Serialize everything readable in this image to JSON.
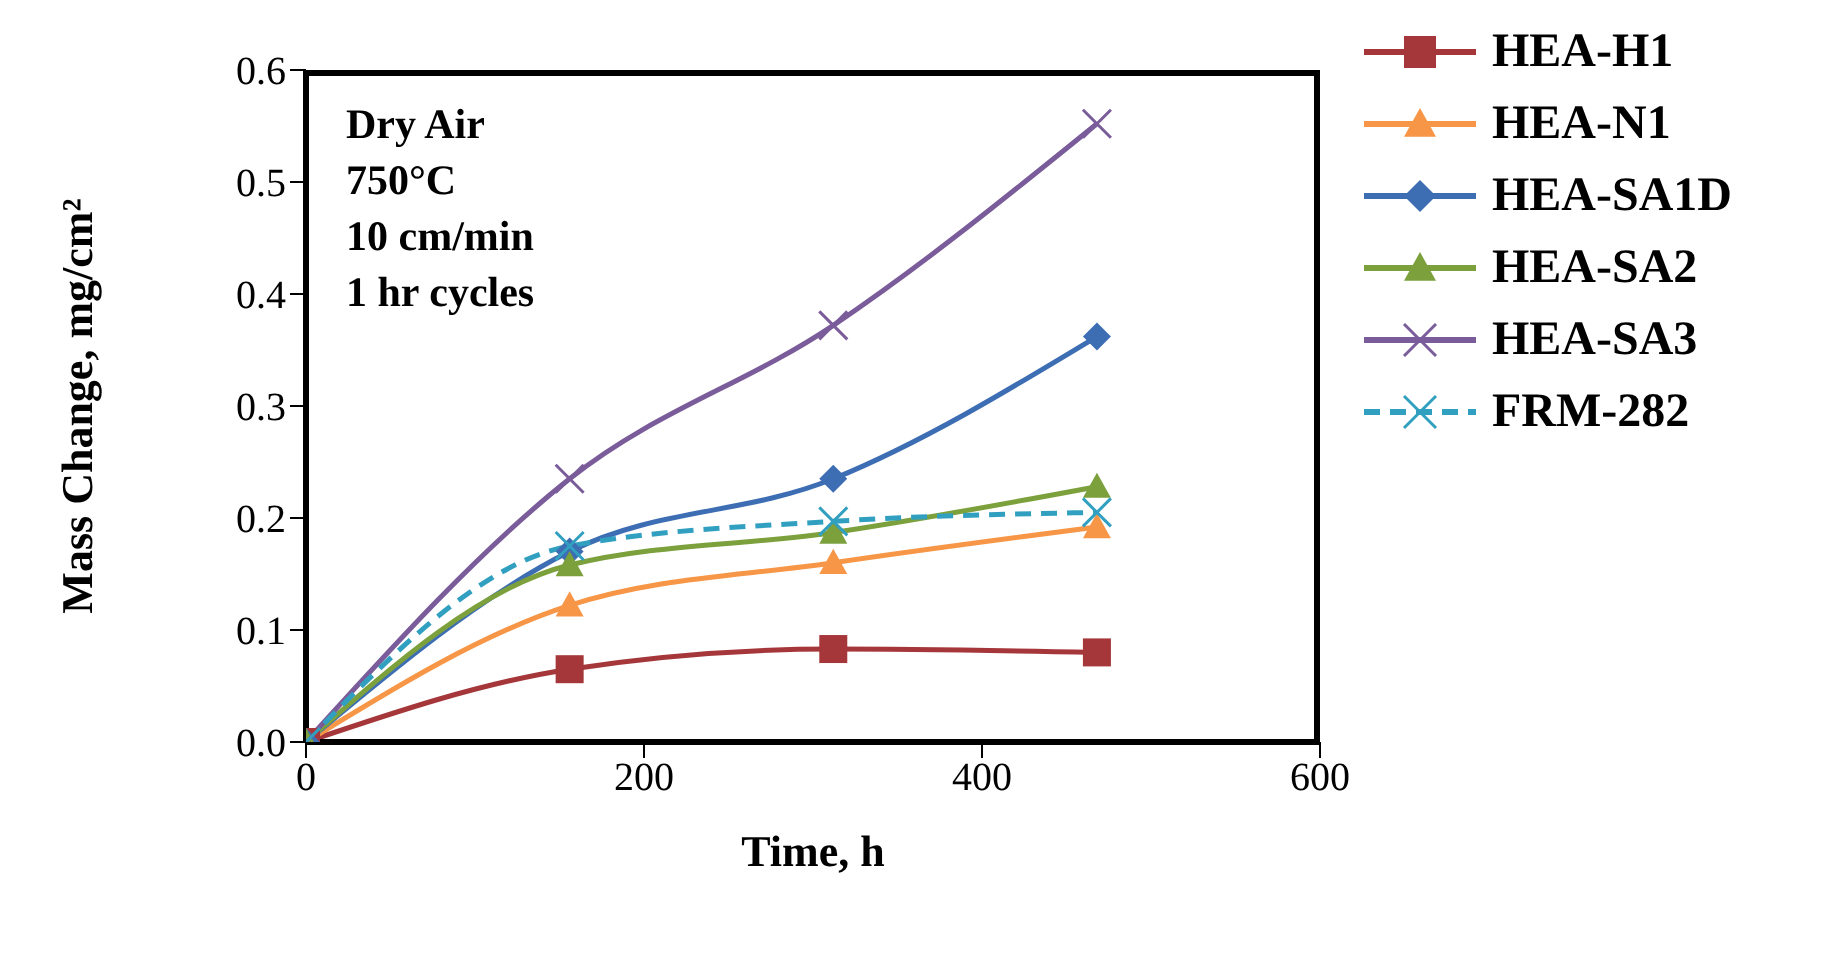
{
  "chart_data": {
    "type": "line",
    "xlabel": "Time, h",
    "ylabel": "Mass Change, mg/cm²",
    "annotations": [
      "Dry Air",
      "750°C",
      "10 cm/min",
      "1 hr cycles"
    ],
    "x": [
      0,
      156,
      312,
      468
    ],
    "series": [
      {
        "name": "HEA-H1",
        "color": "#a5373a",
        "marker": "square",
        "values": [
          0,
          0.065,
          0.083,
          0.08
        ]
      },
      {
        "name": "HEA-N1",
        "color": "#f79646",
        "marker": "triangle",
        "values": [
          0,
          0.122,
          0.16,
          0.192
        ]
      },
      {
        "name": "HEA-SA1D",
        "color": "#3d6eb4",
        "marker": "diamond",
        "values": [
          0,
          0.17,
          0.235,
          0.362
        ]
      },
      {
        "name": "HEA-SA2",
        "color": "#7ba03c",
        "marker": "triangle",
        "values": [
          0,
          0.158,
          0.187,
          0.228
        ]
      },
      {
        "name": "HEA-SA3",
        "color": "#7a5c9a",
        "marker": "cross",
        "values": [
          0,
          0.235,
          0.372,
          0.552
        ]
      },
      {
        "name": "FRM-282",
        "color": "#31a0c0",
        "marker": "cross",
        "line_style": "dashed",
        "values": [
          0,
          0.175,
          0.197,
          0.205
        ]
      }
    ],
    "xlim": [
      0,
      600
    ],
    "xticks": [
      0,
      200,
      400,
      600
    ],
    "ylim": [
      0,
      0.6
    ],
    "yticks": [
      {
        "value": 0,
        "label": "0.0"
      },
      {
        "value": 0.1,
        "label": "0.1"
      },
      {
        "value": 0.2,
        "label": "0.2"
      },
      {
        "value": 0.3,
        "label": "0.3"
      },
      {
        "value": 0.4,
        "label": "0.4"
      },
      {
        "value": 0.5,
        "label": "0.5"
      },
      {
        "value": 0.6,
        "label": "0.6"
      }
    ],
    "grid": false,
    "legend": "right",
    "line_style": "solid"
  }
}
